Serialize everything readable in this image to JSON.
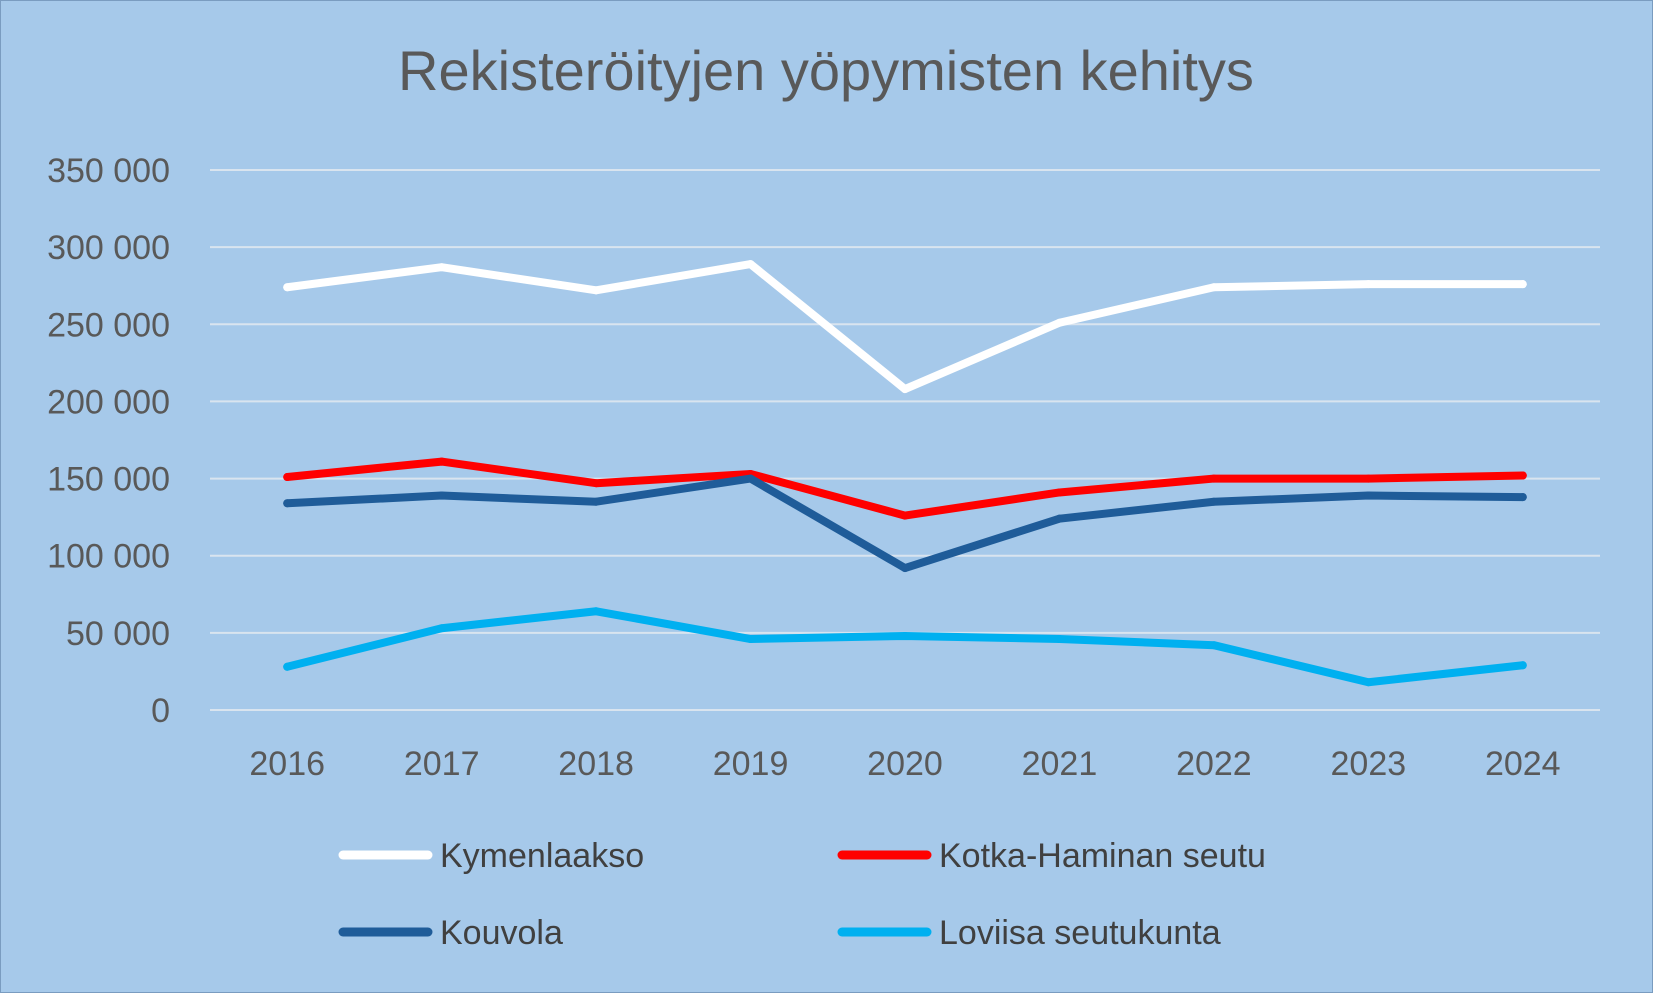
{
  "chart_data": {
    "type": "line",
    "title": "Rekisteröityjen yöpymisten kehitys",
    "xlabel": "",
    "ylabel": "",
    "categories": [
      "2016",
      "2017",
      "2018",
      "2019",
      "2020",
      "2021",
      "2022",
      "2023",
      "2024"
    ],
    "ylim": [
      0,
      350000
    ],
    "yticks": [
      0,
      50000,
      100000,
      150000,
      200000,
      250000,
      300000,
      350000
    ],
    "ytick_labels": [
      "0",
      "50 000",
      "100 000",
      "150 000",
      "200 000",
      "250 000",
      "300 000",
      "350 000"
    ],
    "grid": true,
    "legend_position": "bottom",
    "series": [
      {
        "name": "Kymenlaakso",
        "color": "#ffffff",
        "values": [
          274000,
          287000,
          272000,
          289000,
          208000,
          251000,
          274000,
          276000,
          276000
        ]
      },
      {
        "name": "Kotka-Haminan seutu",
        "color": "#ff0000",
        "values": [
          151000,
          161000,
          147000,
          153000,
          126000,
          141000,
          150000,
          150000,
          152000
        ]
      },
      {
        "name": "Kouvola",
        "color": "#1f5c99",
        "values": [
          134000,
          139000,
          135000,
          150000,
          92000,
          124000,
          135000,
          139000,
          138000
        ]
      },
      {
        "name": "Loviisa seutukunta",
        "color": "#00b0f0",
        "values": [
          28000,
          53000,
          64000,
          46000,
          48000,
          46000,
          42000,
          18000,
          29000
        ]
      }
    ]
  }
}
